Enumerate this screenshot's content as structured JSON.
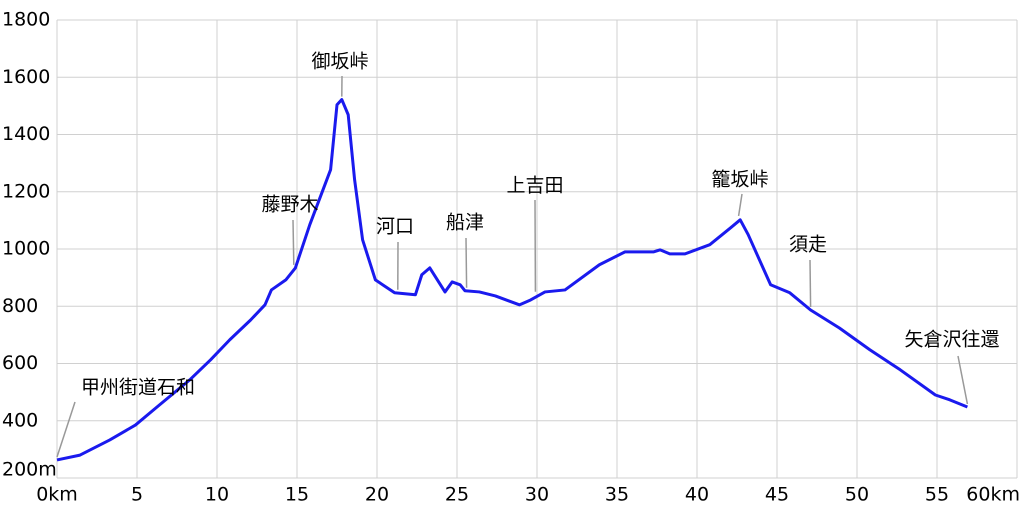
{
  "chart_data": {
    "type": "line",
    "x": [
      0,
      1.44,
      3.3,
      4.9,
      6.4,
      8.3,
      9.6,
      10.8,
      12.1,
      13,
      13.4,
      14.3,
      14.9,
      15.8,
      17.1,
      17.5,
      17.8,
      18.2,
      18.6,
      19.1,
      19.9,
      21.1,
      22.4,
      22.8,
      23.3,
      24.25,
      24.7,
      25.2,
      25.5,
      26.4,
      27.4,
      28.9,
      29.6,
      30.5,
      31.75,
      33.9,
      35.5,
      37.3,
      37.7,
      38.3,
      39.25,
      40.8,
      42.1,
      42.7,
      43.2,
      44.6,
      45.8,
      47.1,
      48.9,
      50.8,
      52.7,
      54.9,
      55.8,
      56.9
    ],
    "series": [
      {
        "color": "#1a1aee",
        "values": [
          263,
          280,
          333,
          385,
          455,
          543,
          613,
          683,
          752,
          805,
          857,
          892,
          934,
          1085,
          1277,
          1504,
          1522,
          1469,
          1242,
          1032,
          892,
          847,
          840,
          910,
          934,
          850,
          885,
          875,
          854,
          850,
          836,
          805,
          822,
          850,
          857,
          945,
          990,
          990,
          997,
          983,
          983,
          1015,
          1074,
          1102,
          1050,
          875,
          847,
          787,
          724,
          648,
          578,
          490,
          473,
          448
        ]
      }
    ],
    "xlim": [
      0,
      60
    ],
    "xticks": [
      {
        "value": 0,
        "label": "0km"
      },
      5,
      10,
      15,
      20,
      25,
      30,
      35,
      40,
      45,
      50,
      55,
      {
        "value": 60,
        "label": "60km"
      }
    ],
    "ylim": [
      200,
      1800
    ],
    "yticks": [
      {
        "value": 200,
        "label": "200m"
      },
      400,
      600,
      800,
      1000,
      1200,
      1400,
      1600,
      1800
    ],
    "grid": true,
    "annotations": [
      {
        "text": "甲州街道石和",
        "x": 0,
        "y": 263
      },
      {
        "text": "藤野木",
        "x": 14.8,
        "y": 934
      },
      {
        "text": "御坂峠",
        "x": 17.8,
        "y": 1522
      },
      {
        "text": "河口",
        "x": 21.3,
        "y": 847
      },
      {
        "text": "船津",
        "x": 25.6,
        "y": 854
      },
      {
        "text": "上吉田",
        "x": 29.9,
        "y": 840
      },
      {
        "text": "籠坂峠",
        "x": 42.6,
        "y": 1105
      },
      {
        "text": "須走",
        "x": 47.1,
        "y": 787
      },
      {
        "text": "矢倉沢往還",
        "x": 56.9,
        "y": 448
      }
    ]
  }
}
